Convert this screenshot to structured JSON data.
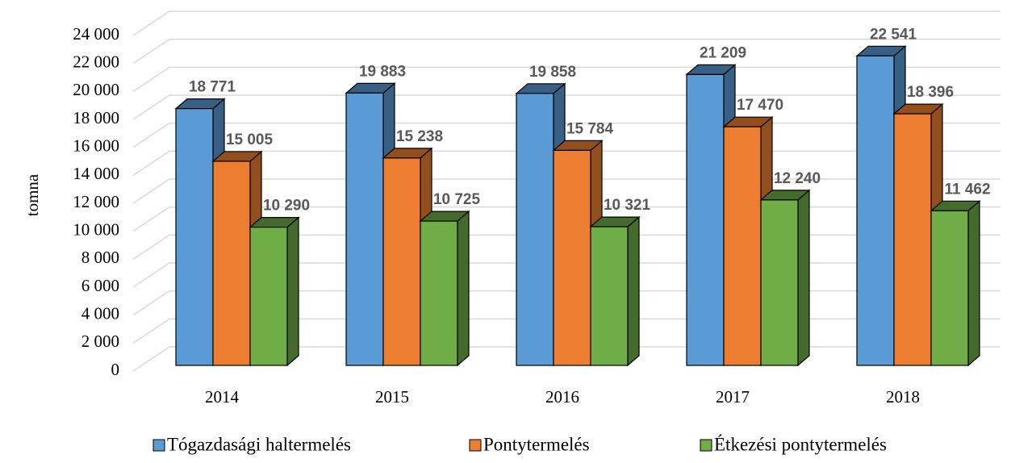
{
  "chart_data": {
    "type": "bar3d",
    "y_label": "tomna",
    "categories": [
      "2014",
      "2015",
      "2016",
      "2017",
      "2018"
    ],
    "series": [
      {
        "name": "Tógazdasági haltermelés",
        "color": "#5b9bd5",
        "values": [
          18771,
          19883,
          19858,
          21209,
          22541
        ],
        "value_labels": [
          "18 771",
          "19 883",
          "19 858",
          "21 209",
          "22 541"
        ]
      },
      {
        "name": "Pontytermelés",
        "color": "#ed7d31",
        "values": [
          15005,
          15238,
          15784,
          17470,
          18396
        ],
        "value_labels": [
          "15 005",
          "15 238",
          "15 784",
          "17 470",
          "18 396"
        ]
      },
      {
        "name": "Étkezési pontytermelés",
        "color": "#70ad47",
        "values": [
          10290,
          10725,
          10321,
          12240,
          11462
        ],
        "value_labels": [
          "10 290",
          "10 725",
          "10 321",
          "12 240",
          "11 462"
        ]
      }
    ],
    "ylim": [
      0,
      24000
    ],
    "yticks": [
      0,
      {
        "value": 2000,
        "label": "2 000"
      },
      {
        "value": 4000,
        "label": "4 000"
      },
      {
        "value": 6000,
        "label": "6 000"
      },
      {
        "value": 8000,
        "label": "8 000"
      },
      {
        "value": 10000,
        "label": "10 000"
      },
      {
        "value": 12000,
        "label": "12 000"
      },
      {
        "value": 14000,
        "label": "14 000"
      },
      {
        "value": 16000,
        "label": "16 000"
      },
      {
        "value": 18000,
        "label": "18 000"
      },
      {
        "value": 20000,
        "label": "20 000"
      },
      {
        "value": 22000,
        "label": "22 000"
      },
      {
        "value": 24000,
        "label": "24 000"
      }
    ],
    "grid": true,
    "legend": "bottom"
  }
}
